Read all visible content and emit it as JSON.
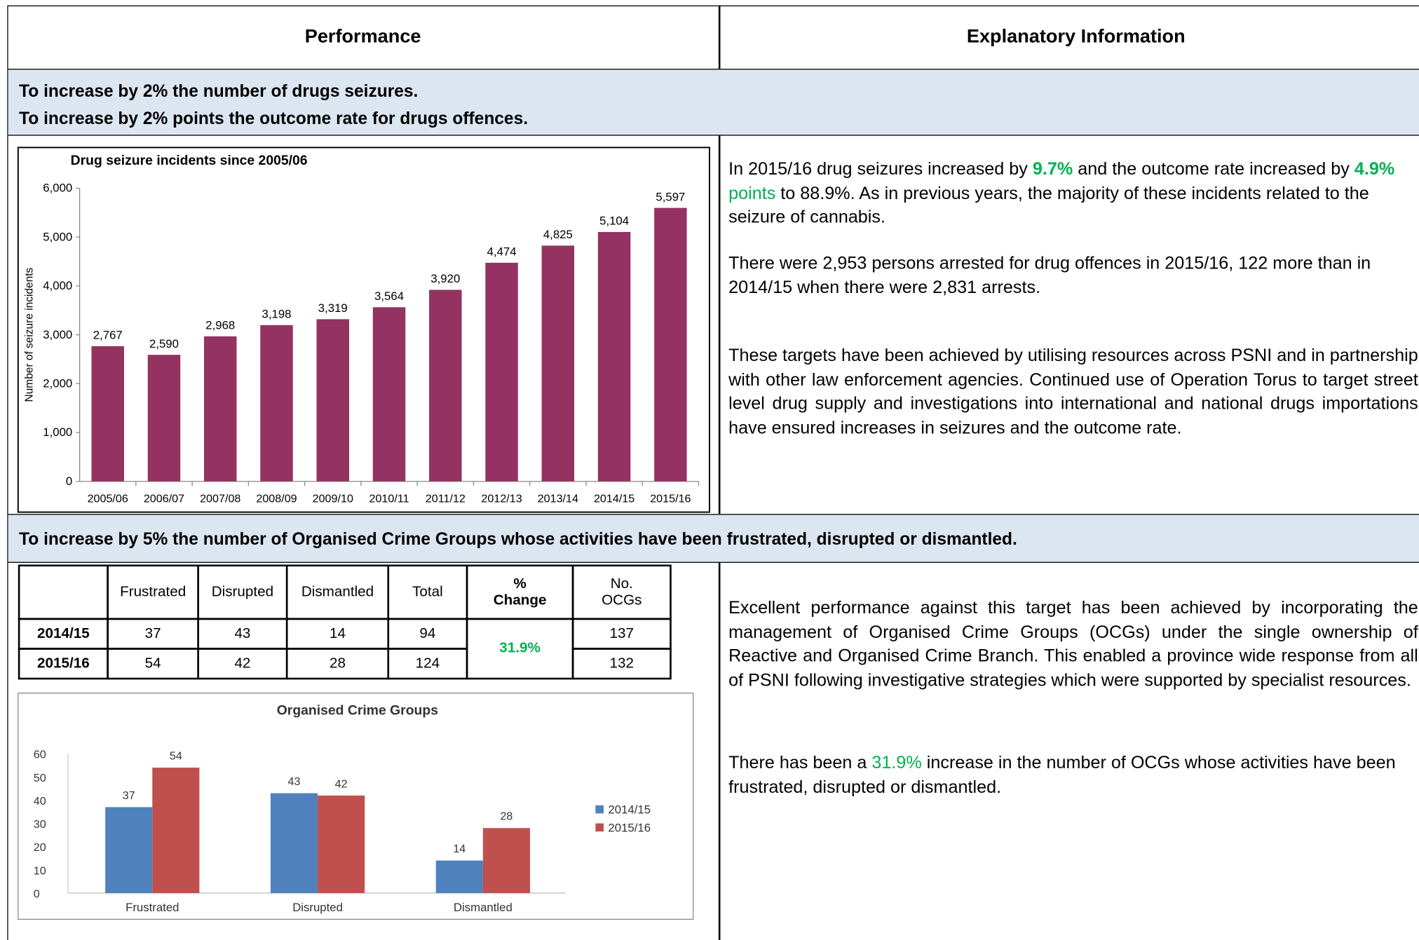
{
  "header": {
    "performance": "Performance",
    "explanatory": "Explanatory Information"
  },
  "sections": [
    {
      "targets": [
        "To increase by 2% the number of drugs seizures.",
        "To increase by 2% points the outcome rate for drugs offences."
      ]
    },
    {
      "targets": [
        "To increase by 5% the number of Organised Crime Groups whose activities have been frustrated, disrupted or dismantled."
      ]
    }
  ],
  "paragraphs": [
    [
      {
        "text": "In 2015/16 drug seizures increased by "
      },
      {
        "text": "9.7%",
        "style": "bold-green"
      },
      {
        "text": " and the outcome rate increased by "
      },
      {
        "text": "4.9%",
        "style": "bold-green"
      },
      {
        "text": " points",
        "style": "green"
      },
      {
        "text": " to 88.9%.  As  in previous years, the majority of these incidents related to the seizure of cannabis."
      }
    ],
    [
      {
        "text": "There were 2,953 persons arrested for drug offences in 2015/16, 122 more than in 2014/15 when there were 2,831 arrests."
      }
    ],
    [
      {
        "text": "These targets have been achieved by utilising resources across PSNI and in partnership with other law enforcement agencies.  Continued use of Operation Torus to target street level drug supply and investigations into international and national drugs importations have ensured increases in seizures and the outcome rate."
      }
    ],
    [
      {
        "text": "Excellent performance against this target has been achieved by incorporating the management of Organised Crime Groups (OCGs) under the single ownership of Reactive and Organised Crime Branch.  This enabled a province wide response from all of PSNI following investigative strategies which were supported by specialist resources."
      }
    ],
    [
      {
        "text": "There has been a "
      },
      {
        "text": "31.9%",
        "style": "green"
      },
      {
        "text": " increase in the number of OCGs whose activities have been frustrated, disrupted or dismantled."
      }
    ]
  ],
  "table": {
    "headers": [
      "Frustrated",
      "Disrupted",
      "Dismantled",
      "Total",
      "% Change",
      "No. OCGs"
    ],
    "rows": [
      {
        "label": "2014/15",
        "cells": [
          "37",
          "43",
          "14",
          "94"
        ],
        "ocgs": "137"
      },
      {
        "label": "2015/16",
        "cells": [
          "54",
          "42",
          "28",
          "124"
        ],
        "ocgs": "132"
      }
    ],
    "change": "31.9%"
  },
  "chart_data": [
    {
      "type": "bar",
      "title": "Drug seizure incidents since 2005/06",
      "y_label": "Number of seizure incidents",
      "color": "#943262",
      "categories": [
        "2005/06",
        "2006/07",
        "2007/08",
        "2008/09",
        "2009/10",
        "2010/11",
        "2011/12",
        "2012/13",
        "2013/14",
        "2014/15",
        "2015/16"
      ],
      "values": [
        2767,
        2590,
        2968,
        3198,
        3319,
        3564,
        3920,
        4474,
        4825,
        5104,
        5597
      ],
      "value_labels": [
        "2,767",
        "2,590",
        "2,968",
        "3,198",
        "3,319",
        "3,564",
        "3,920",
        "4,474",
        "4,825",
        "5,104",
        "5,597"
      ],
      "ylim": [
        0,
        6000
      ],
      "yticks": [
        0,
        {
          "value": 1000,
          "label": "1,000"
        },
        {
          "value": 2000,
          "label": "2,000"
        },
        {
          "value": 3000,
          "label": "3,000"
        },
        {
          "value": 4000,
          "label": "4,000"
        },
        {
          "value": 5000,
          "label": "5,000"
        },
        {
          "value": 6000,
          "label": "6,000"
        }
      ],
      "grid": false
    },
    {
      "type": "grouped_bar",
      "title": "Organised Crime Groups",
      "categories": [
        "Frustrated",
        "Disrupted",
        "Dismantled"
      ],
      "series": [
        {
          "name": "2014/15",
          "color": "#4f81bd",
          "values": [
            37,
            43,
            14
          ]
        },
        {
          "name": "2015/16",
          "color": "#c0504d",
          "values": [
            54,
            42,
            28
          ]
        }
      ],
      "ylim": [
        0,
        60
      ],
      "yticks": [
        0,
        10,
        20,
        30,
        40,
        50,
        60
      ],
      "legend": "right",
      "grid": false
    }
  ]
}
